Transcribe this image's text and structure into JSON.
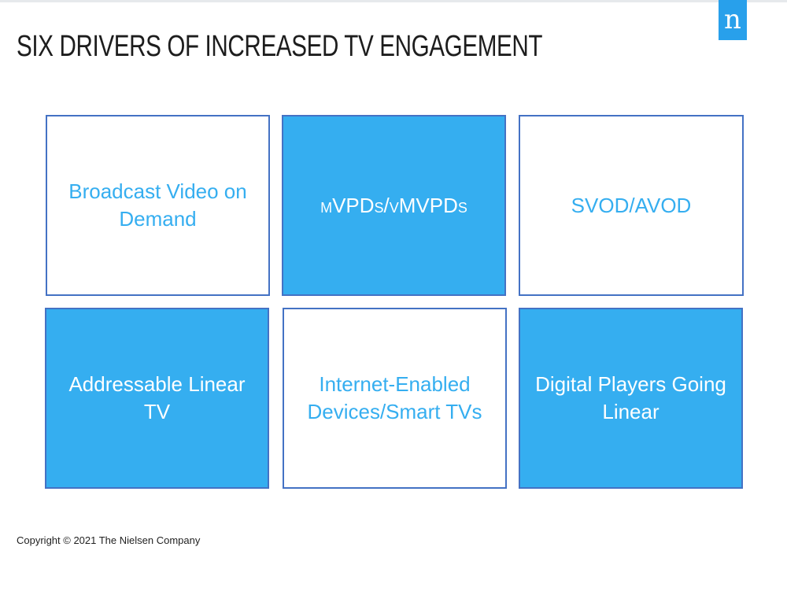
{
  "slide": {
    "logo_letter": "n",
    "title": "SIX DRIVERS OF INCREASED TV ENGAGEMENT",
    "tiles": [
      {
        "label": "Broadcast Video on Demand",
        "style": "outline"
      },
      {
        "label": "mVPDs/vMVPDs",
        "style": "filled"
      },
      {
        "label": "SVOD/AVOD",
        "style": "outline"
      },
      {
        "label": "Addressable Linear TV",
        "style": "filled"
      },
      {
        "label": "Internet-Enabled Devices/Smart TVs",
        "style": "outline"
      },
      {
        "label": "Digital Players Going Linear",
        "style": "filled"
      }
    ],
    "copyright": "Copyright © 2021 The Nielsen Company"
  },
  "colors": {
    "accent": "#35aef0",
    "border": "#4472c4",
    "logo": "#28a0eb",
    "title_text": "#1d1d1d"
  }
}
